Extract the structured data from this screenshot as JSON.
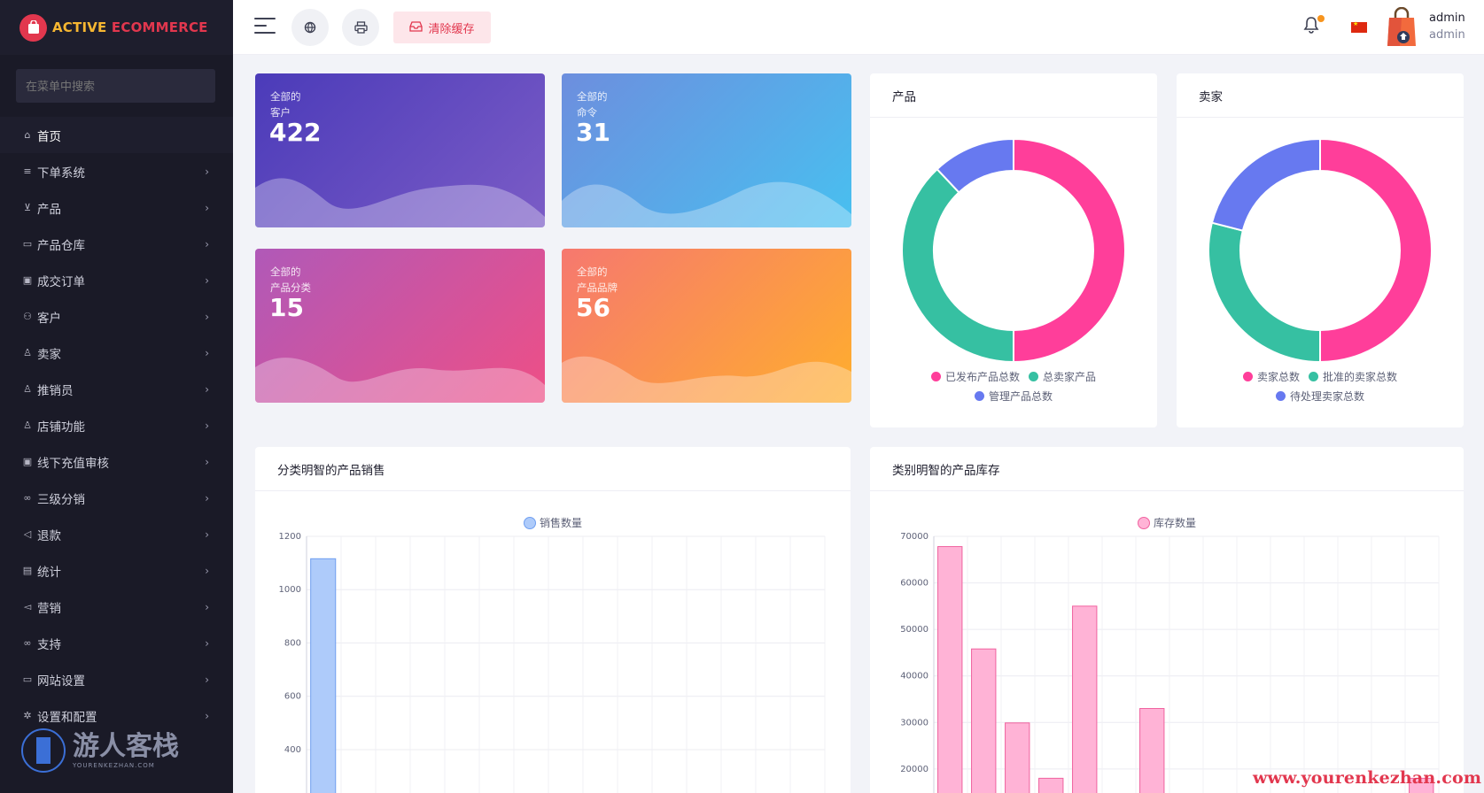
{
  "brand": {
    "part1": "ACTIVE ",
    "part2": "ECOMMERCE"
  },
  "sidebar": {
    "search_placeholder": "在菜单中搜索",
    "items": [
      {
        "label": "首页",
        "icon": "home-icon",
        "active": true
      },
      {
        "label": "下单系统",
        "icon": "list-icon"
      },
      {
        "label": "产品",
        "icon": "cart-icon"
      },
      {
        "label": "产品仓库",
        "icon": "archive-icon"
      },
      {
        "label": "成交订单",
        "icon": "money-icon"
      },
      {
        "label": "客户",
        "icon": "users-icon"
      },
      {
        "label": "卖家",
        "icon": "user-icon"
      },
      {
        "label": "推销员",
        "icon": "user-tie-icon"
      },
      {
        "label": "店铺功能",
        "icon": "user-icon"
      },
      {
        "label": "线下充值审核",
        "icon": "money-icon"
      },
      {
        "label": "三级分销",
        "icon": "link-icon"
      },
      {
        "label": "退款",
        "icon": "backward-icon"
      },
      {
        "label": "统计",
        "icon": "file-icon"
      },
      {
        "label": "营销",
        "icon": "bullhorn-icon"
      },
      {
        "label": "支持",
        "icon": "link-icon"
      },
      {
        "label": "网站设置",
        "icon": "desktop-icon"
      },
      {
        "label": "设置和配置",
        "icon": "gear-icon"
      }
    ]
  },
  "watermark": {
    "cn": "游人客栈",
    "en": "YOURENKEZHAN.COM",
    "url": "www.yourenkezhan.com"
  },
  "header": {
    "clear_cache": "清除缓存",
    "user_name": "admin",
    "user_role": "admin"
  },
  "stats": [
    {
      "line1": "全部的",
      "line2": "客户",
      "value": "422"
    },
    {
      "line1": "全部的",
      "line2": "命令",
      "value": "31"
    },
    {
      "line1": "全部的",
      "line2": "产品分类",
      "value": "15"
    },
    {
      "line1": "全部的",
      "line2": "产品品牌",
      "value": "56"
    }
  ],
  "colors": {
    "pink": "#ff3e9a",
    "green": "#36c0a2",
    "blue": "#6779f0",
    "brand_red": "#e2374e"
  },
  "product_panel": {
    "title": "产品",
    "chart_data": {
      "type": "pie",
      "labels": [
        "已发布产品总数",
        "总卖家产品",
        "管理产品总数"
      ],
      "values": [
        50,
        38,
        12
      ],
      "colors": [
        "#ff3e9a",
        "#36c0a2",
        "#6779f0"
      ]
    }
  },
  "seller_panel": {
    "title": "卖家",
    "chart_data": {
      "type": "pie",
      "labels": [
        "卖家总数",
        "批准的卖家总数",
        "待处理卖家总数"
      ],
      "values": [
        50,
        29,
        21
      ],
      "colors": [
        "#ff3e9a",
        "#36c0a2",
        "#6779f0"
      ]
    }
  },
  "sales_panel": {
    "title": "分类明智的产品销售",
    "chart_data": {
      "type": "bar",
      "series": [
        {
          "name": "销售数量",
          "values": [
            1116,
            0,
            0,
            0,
            0,
            0,
            0,
            0,
            0,
            0,
            0,
            0,
            0,
            0,
            0
          ]
        }
      ],
      "y_ticks": [
        1200,
        1000,
        800,
        600,
        400
      ],
      "y_visible_range": [
        350,
        1200
      ],
      "bar_color": "#aecbfa",
      "bar_border": "#6f9ef0"
    }
  },
  "stock_panel": {
    "title": "类别明智的产品库存",
    "chart_data": {
      "type": "bar",
      "series": [
        {
          "name": "库存数量",
          "values": [
            67800,
            45800,
            29900,
            18000,
            55000,
            0,
            33000,
            0,
            0,
            0,
            0,
            0,
            0,
            0,
            18000
          ]
        }
      ],
      "y_ticks": [
        70000,
        60000,
        50000,
        40000,
        30000,
        20000
      ],
      "y_visible_range": [
        17500,
        70000
      ],
      "bar_color": "#ffb3d6",
      "bar_border": "#f0629f"
    }
  }
}
